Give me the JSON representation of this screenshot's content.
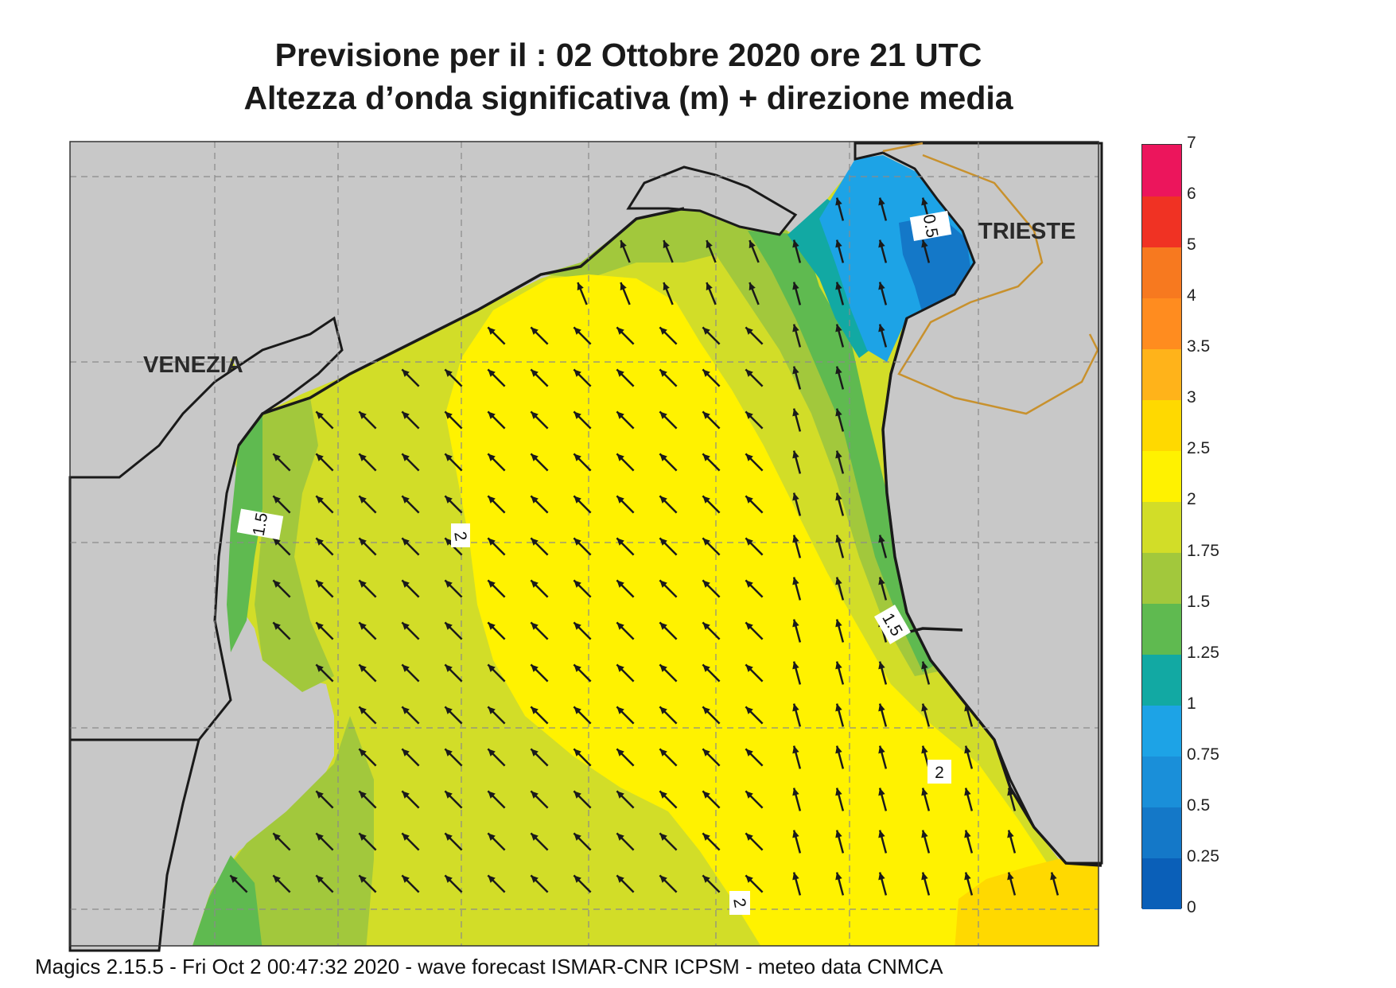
{
  "title": {
    "line1": "Previsione per il  :  02  Ottobre  2020   ore 21 UTC",
    "line2": "Altezza d’onda significativa (m) + direzione media"
  },
  "places": [
    {
      "name": "VENEZIA"
    },
    {
      "name": "TRIESTE"
    }
  ],
  "contour_labels": [
    "1.5",
    "2",
    "0.5",
    "1.5",
    "2",
    "2"
  ],
  "colorbar": {
    "levels": [
      "0",
      "0.25",
      "0.5",
      "0.75",
      "1",
      "1.25",
      "1.5",
      "1.75",
      "2",
      "2.5",
      "3",
      "3.5",
      "4",
      "5",
      "6",
      "7"
    ],
    "colors": [
      "#0a5fb8",
      "#1478c8",
      "#1a8fd9",
      "#1da3e6",
      "#12a9a3",
      "#5fba50",
      "#a2c83c",
      "#d2dd28",
      "#fff200",
      "#ffd900",
      "#ffb31a",
      "#ff8c1f",
      "#f7791f",
      "#f03223",
      "#ec155c"
    ]
  },
  "legend_colors": {
    "land": "#c8c8c8",
    "coast": "#1a1a1a",
    "border": "#c8912d",
    "arrow": "#1a1a1a"
  },
  "footer": "Magics 2.15.5 - Fri Oct  2 00:47:32 2020 - wave forecast  ISMAR-CNR  ICPSM - meteo data   CNMCA"
}
